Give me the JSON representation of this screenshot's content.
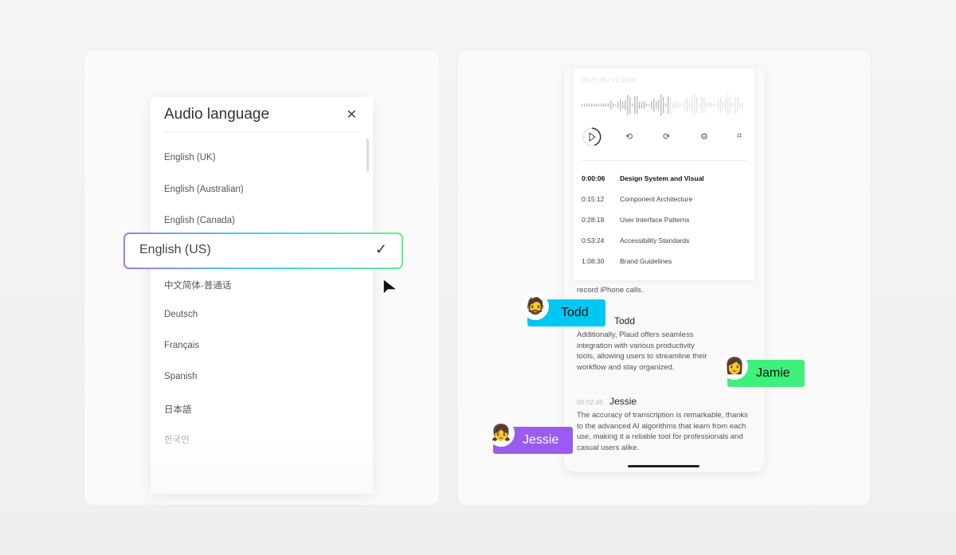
{
  "language_dialog": {
    "title": "Audio language",
    "close_icon": "close-icon",
    "languages": [
      "English (UK)",
      "English (Australian)",
      "English (Canada)",
      "中文简体-普通话",
      "Deutsch",
      "Français",
      "Spanish",
      "日本語",
      "한국인"
    ],
    "selected": "English (US)",
    "selected_icon": "check-icon"
  },
  "player": {
    "time": "00:26:35 / 01:16:04",
    "controls": [
      "play-icon",
      "rewind-15-icon",
      "forward-15-icon",
      "speed-1x-icon",
      "crop-icon"
    ],
    "chapters": [
      {
        "time": "0:00:06",
        "title": "Design System and Visual"
      },
      {
        "time": "0:15:12",
        "title": "Component Architecture"
      },
      {
        "time": "0:28:18",
        "title": "User Interface Patterns"
      },
      {
        "time": "0:53:24",
        "title": "Accessibility Standards"
      },
      {
        "time": "1:08:30",
        "title": "Brand Guidelines"
      }
    ]
  },
  "transcript": {
    "partial": "record iPhone calls.",
    "entries": [
      {
        "speaker": "Todd",
        "text": "Additionally, Plaud offers seamless integration with various productivity tools, allowing users to streamline their workflow and stay organized."
      },
      {
        "time": "00:02:45",
        "speaker": "Jessie",
        "text": "The accuracy of transcription is remarkable, thanks to the advanced AI algorithms that learn from each use, making it a reliable tool for professionals and casual users alike."
      }
    ]
  },
  "speaker_tags": [
    {
      "name": "Todd",
      "color": "#00c6f2"
    },
    {
      "name": "Jamie",
      "color": "#3ff07c"
    },
    {
      "name": "Jessie",
      "color": "#9a5cf0"
    }
  ]
}
